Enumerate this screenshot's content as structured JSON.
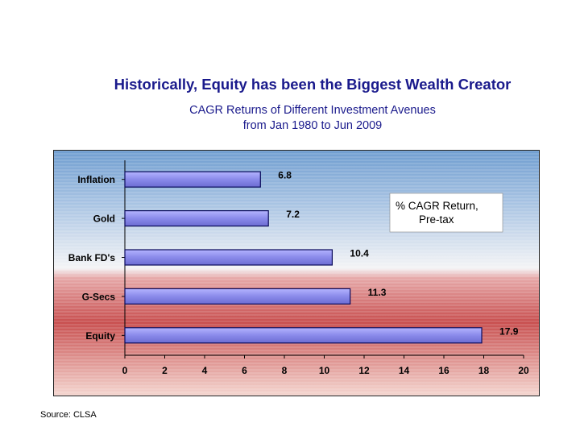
{
  "slide": {
    "title": "Historically, Equity has been the Biggest Wealth Creator",
    "subtitle_line1": "CAGR Returns of Different Investment Avenues",
    "subtitle_line2": "from Jan 1980 to Jun 2009",
    "source": "Source: CLSA"
  },
  "chart_data": {
    "type": "bar",
    "orientation": "horizontal",
    "categories": [
      "Inflation",
      "Gold",
      "Bank FD's",
      "G-Secs",
      "Equity"
    ],
    "values": [
      6.8,
      7.2,
      10.4,
      11.3,
      17.9
    ],
    "legend_label": "% CAGR Return,\nPre-tax",
    "legend_lines": [
      "% CAGR Return,",
      "Pre-tax"
    ],
    "xlim": [
      0,
      20
    ],
    "x_ticks": [
      0,
      2,
      4,
      6,
      8,
      10,
      12,
      14,
      16,
      18,
      20
    ],
    "grid": false,
    "legend_position": "top-right",
    "colors": {
      "bar_fill": "#8f8ff0",
      "bar_stroke": "#0a0a5a",
      "background_top": "#7fa8d6",
      "background_mid": "#f2f2f2",
      "background_bottom": "#c84f4f"
    }
  }
}
